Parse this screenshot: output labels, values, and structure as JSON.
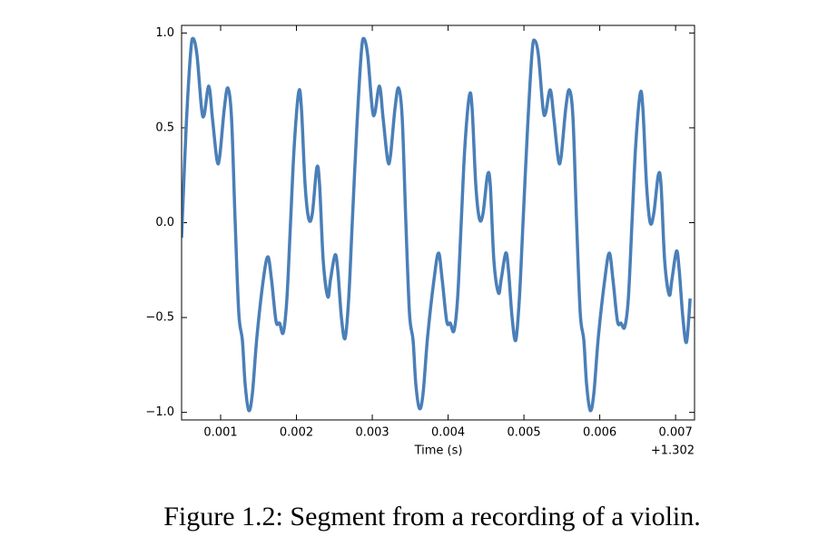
{
  "chart_data": {
    "type": "line",
    "xlabel": "Time (s)",
    "x_offset_label": "+1.302",
    "caption": "Figure 1.2: Segment from a recording of a violin.",
    "xlim": [
      0.000485,
      0.00725
    ],
    "ylim": [
      -1.04,
      1.04
    ],
    "xticks": [
      0.001,
      0.002,
      0.003,
      0.004,
      0.005,
      0.006,
      0.007
    ],
    "yticks": [
      {
        "value": -1.0,
        "label": "−1.0"
      },
      {
        "value": -0.5,
        "label": "−0.5"
      },
      {
        "value": 0.0,
        "label": "0.0"
      },
      {
        "value": 0.5,
        "label": "0.5"
      },
      {
        "value": 1.0,
        "label": "1.0"
      }
    ],
    "grid": false,
    "x": [
      0.000485,
      0.000545,
      0.000605,
      0.000641,
      0.000689,
      0.000749,
      0.000784,
      0.000844,
      0.000892,
      0.000952,
      0.000988,
      0.001048,
      0.001096,
      0.001144,
      0.001192,
      0.00124,
      0.001287,
      0.001323,
      0.001371,
      0.001419,
      0.001479,
      0.001563,
      0.001623,
      0.001671,
      0.001731,
      0.001778,
      0.001826,
      0.001874,
      0.001922,
      0.00197,
      0.00203,
      0.002066,
      0.002114,
      0.002162,
      0.00221,
      0.002269,
      0.002305,
      0.002353,
      0.002413,
      0.002449,
      0.002509,
      0.002545,
      0.002593,
      0.002641,
      0.002689,
      0.002736,
      0.002796,
      0.002856,
      0.002892,
      0.00294,
      0.003,
      0.003035,
      0.003095,
      0.003143,
      0.003203,
      0.003239,
      0.003299,
      0.003347,
      0.003395,
      0.003443,
      0.003491,
      0.003538,
      0.003574,
      0.003622,
      0.00367,
      0.00373,
      0.003814,
      0.003874,
      0.003922,
      0.003982,
      0.004029,
      0.004077,
      0.004125,
      0.004173,
      0.004221,
      0.004281,
      0.004317,
      0.004365,
      0.004413,
      0.004461,
      0.00452,
      0.004556,
      0.004604,
      0.004664,
      0.0047,
      0.00476,
      0.004796,
      0.004844,
      0.004892,
      0.00494,
      0.004988,
      0.005048,
      0.005108,
      0.005144,
      0.005192,
      0.005252,
      0.005287,
      0.005347,
      0.005395,
      0.005455,
      0.005491,
      0.005551,
      0.005599,
      0.005647,
      0.005695,
      0.005743,
      0.00579,
      0.005826,
      0.005874,
      0.005922,
      0.005982,
      0.006066,
      0.006126,
      0.006174,
      0.006234,
      0.006281,
      0.006329,
      0.006377,
      0.006425,
      0.006473,
      0.006533,
      0.006569,
      0.006617,
      0.006665,
      0.006713,
      0.006772,
      0.006808,
      0.006856,
      0.006916,
      0.006952,
      0.007012,
      0.007048,
      0.007096,
      0.007144,
      0.007192
    ],
    "series": [
      {
        "name": "violin",
        "color": "#4a7fb8",
        "values": [
          -0.08,
          0.5,
          0.9,
          0.97,
          0.88,
          0.6,
          0.57,
          0.72,
          0.55,
          0.33,
          0.35,
          0.6,
          0.71,
          0.55,
          0.0,
          -0.48,
          -0.62,
          -0.85,
          -0.99,
          -0.9,
          -0.6,
          -0.3,
          -0.18,
          -0.3,
          -0.52,
          -0.53,
          -0.58,
          -0.4,
          0.0,
          0.4,
          0.69,
          0.6,
          0.2,
          0.02,
          0.05,
          0.29,
          0.2,
          -0.2,
          -0.39,
          -0.3,
          -0.17,
          -0.25,
          -0.5,
          -0.61,
          -0.4,
          0.0,
          0.5,
          0.9,
          0.97,
          0.88,
          0.6,
          0.58,
          0.72,
          0.55,
          0.33,
          0.35,
          0.6,
          0.71,
          0.55,
          0.0,
          -0.48,
          -0.62,
          -0.85,
          -0.98,
          -0.9,
          -0.6,
          -0.3,
          -0.16,
          -0.3,
          -0.52,
          -0.53,
          -0.57,
          -0.4,
          0.0,
          0.4,
          0.67,
          0.6,
          0.2,
          0.02,
          0.05,
          0.25,
          0.2,
          -0.2,
          -0.37,
          -0.3,
          -0.16,
          -0.25,
          -0.5,
          -0.62,
          -0.4,
          0.0,
          0.5,
          0.9,
          0.96,
          0.88,
          0.6,
          0.58,
          0.7,
          0.55,
          0.33,
          0.35,
          0.6,
          0.7,
          0.55,
          0.0,
          -0.48,
          -0.62,
          -0.85,
          -0.99,
          -0.9,
          -0.6,
          -0.3,
          -0.16,
          -0.3,
          -0.52,
          -0.53,
          -0.55,
          -0.4,
          0.0,
          0.4,
          0.68,
          0.6,
          0.2,
          0.0,
          0.05,
          0.25,
          0.2,
          -0.2,
          -0.38,
          -0.3,
          -0.15,
          -0.25,
          -0.5,
          -0.63,
          -0.4
        ]
      }
    ]
  }
}
